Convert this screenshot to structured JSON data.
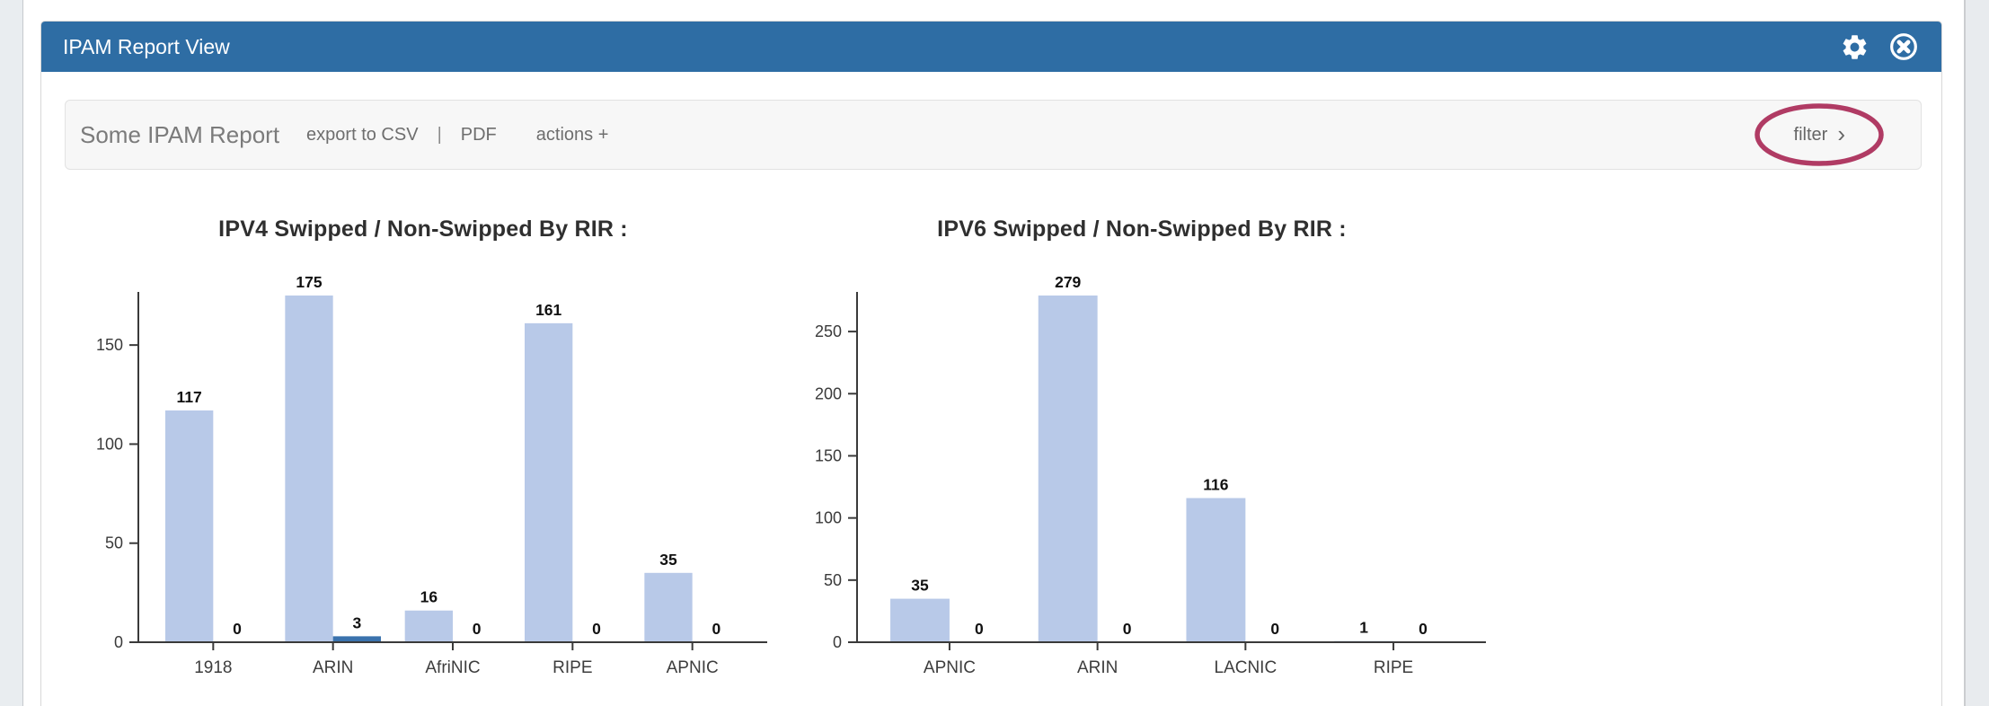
{
  "page": {
    "window_title": "IPAM Report View"
  },
  "header_icons": {
    "settings": "gear-icon",
    "close": "circle-x-icon"
  },
  "toolbar": {
    "report_title": "Some IPAM Report",
    "export_csv": "export to CSV",
    "separator": "|",
    "pdf": "PDF",
    "actions": "actions +",
    "filter": "filter",
    "filter_chevron": "›"
  },
  "colors": {
    "header_bg": "#2e6da4",
    "bar_primary": "#b8c9e8",
    "bar_secondary": "#3a72ad",
    "annotation": "#b03b64",
    "axis": "#3a3a3a"
  },
  "chart_data": [
    {
      "type": "bar",
      "title": "IPV4 Swipped / Non-Swipped By RIR :",
      "categories": [
        "1918",
        "ARIN",
        "AfriNIC",
        "RIPE",
        "APNIC"
      ],
      "series": [
        {
          "name": "Swipped",
          "color": "#b8c9e8",
          "values": [
            117,
            175,
            16,
            161,
            35
          ]
        },
        {
          "name": "Non-Swipped",
          "color": "#3a72ad",
          "values": [
            0,
            3,
            0,
            0,
            0
          ]
        }
      ],
      "yticks": [
        0,
        50,
        100,
        150
      ],
      "ylim": [
        0,
        175
      ],
      "grid": false,
      "legend_position": "none",
      "value_labels": true
    },
    {
      "type": "bar",
      "title": "IPV6 Swipped / Non-Swipped By RIR :",
      "categories": [
        "APNIC",
        "ARIN",
        "LACNIC",
        "RIPE"
      ],
      "series": [
        {
          "name": "Swipped",
          "color": "#b8c9e8",
          "values": [
            35,
            279,
            116,
            1
          ]
        },
        {
          "name": "Non-Swipped",
          "color": "#3a72ad",
          "values": [
            0,
            0,
            0,
            0
          ]
        }
      ],
      "yticks": [
        0,
        50,
        100,
        150,
        200,
        250
      ],
      "ylim": [
        0,
        279
      ],
      "grid": false,
      "legend_position": "none",
      "value_labels": true
    }
  ]
}
